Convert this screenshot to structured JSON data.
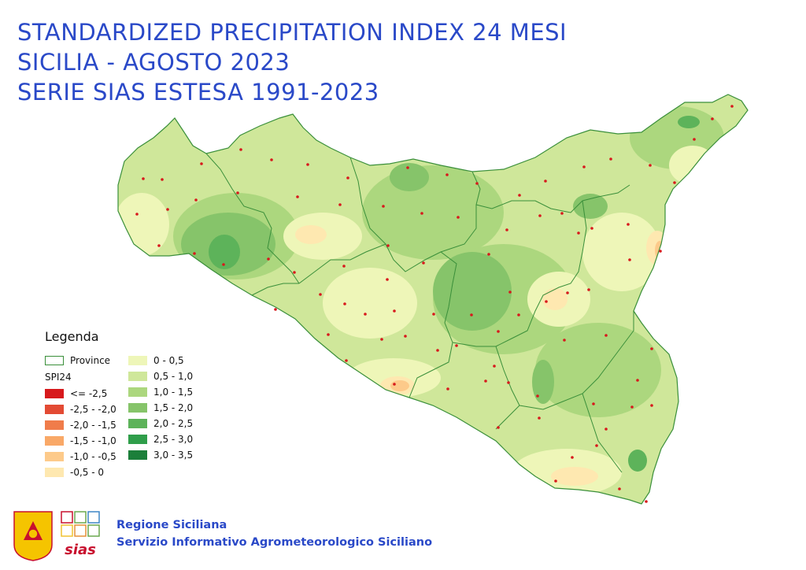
{
  "title": {
    "line1": "STANDARDIZED PRECIPITATION INDEX 24 MESI",
    "line2": "SICILIA - AGOSTO 2023",
    "line3": "SERIE SIAS ESTESA 1991-2023"
  },
  "legend": {
    "heading": "Legenda",
    "province_label": "Province",
    "index_label": "SPI24",
    "negative_classes": [
      {
        "label": "<= -2,5",
        "color": "#d7191c"
      },
      {
        "label": "-2,5 - -2,0",
        "color": "#e34a33"
      },
      {
        "label": "-2,0 - -1,5",
        "color": "#f07c4a"
      },
      {
        "label": "-1,5 - -1,0",
        "color": "#f9a867"
      },
      {
        "label": "-1,0 - -0,5",
        "color": "#fdca8a"
      },
      {
        "label": "-0,5 - 0",
        "color": "#fee8b0"
      }
    ],
    "positive_classes": [
      {
        "label": "0 - 0,5",
        "color": "#eef6b8"
      },
      {
        "label": "0,5 - 1,0",
        "color": "#cfe79a"
      },
      {
        "label": "1,0 - 1,5",
        "color": "#acd77e"
      },
      {
        "label": "1,5 - 2,0",
        "color": "#86c46a"
      },
      {
        "label": "2,0 - 2,5",
        "color": "#5db35a"
      },
      {
        "label": "2,5 - 3,0",
        "color": "#2f9e4a"
      },
      {
        "label": "3,0 - 3,5",
        "color": "#1c7f3a"
      }
    ],
    "province_border_color": "#3a8f3a",
    "station_color": "#d7191c"
  },
  "footer": {
    "line1": "Regione Siciliana",
    "line2": "Servizio Informativo Agrometeorologico Siciliano",
    "sias_logo_text": "sias",
    "text_color": "#2a49c8"
  }
}
